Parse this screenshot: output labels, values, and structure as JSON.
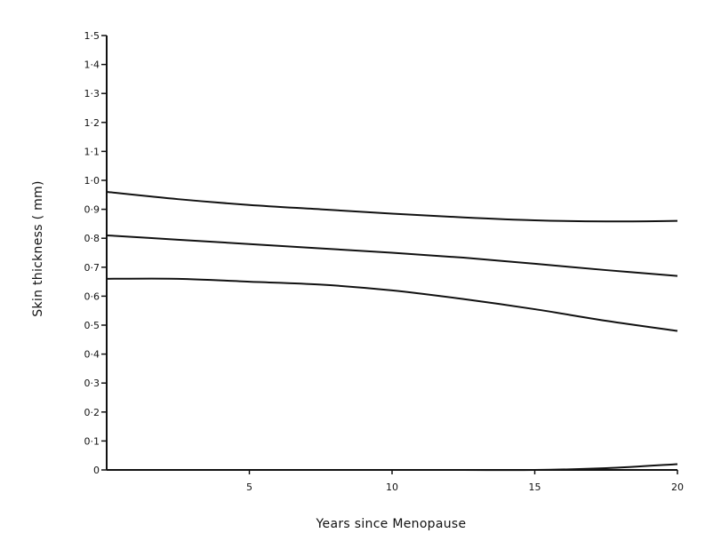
{
  "chart_data": {
    "type": "line",
    "title": "",
    "xlabel": "Years since Menopause",
    "ylabel": "Skin thickness ( mm)",
    "xlim": [
      0,
      20
    ],
    "ylim": [
      0,
      1.5
    ],
    "grid": false,
    "x_ticks": [
      {
        "value": 5,
        "label": "5"
      },
      {
        "value": 10,
        "label": "10"
      },
      {
        "value": 15,
        "label": "15"
      },
      {
        "value": 20,
        "label": "20"
      }
    ],
    "y_ticks": [
      {
        "value": 0,
        "label": "0"
      },
      {
        "value": 0.1,
        "label": "0·1"
      },
      {
        "value": 0.2,
        "label": "0·2"
      },
      {
        "value": 0.3,
        "label": "0·3"
      },
      {
        "value": 0.4,
        "label": "0·4"
      },
      {
        "value": 0.5,
        "label": "0·5"
      },
      {
        "value": 0.6,
        "label": "0·6"
      },
      {
        "value": 0.7,
        "label": "0·7"
      },
      {
        "value": 0.8,
        "label": "0·8"
      },
      {
        "value": 0.9,
        "label": "0·9"
      },
      {
        "value": 1.0,
        "label": "1·0"
      },
      {
        "value": 1.1,
        "label": "1·1"
      },
      {
        "value": 1.2,
        "label": "1·2"
      },
      {
        "value": 1.3,
        "label": "1·3"
      },
      {
        "value": 1.4,
        "label": "1·4"
      },
      {
        "value": 1.5,
        "label": "1·5"
      }
    ],
    "x": [
      0,
      2.5,
      5,
      7.5,
      10,
      12.5,
      15,
      17.5,
      20
    ],
    "series": [
      {
        "values": [
          0.96,
          0.935,
          0.915,
          0.9,
          0.885,
          0.872,
          0.862,
          0.858,
          0.86
        ]
      },
      {
        "values": [
          0.81,
          0.795,
          0.78,
          0.765,
          0.75,
          0.733,
          0.712,
          0.69,
          0.67
        ]
      },
      {
        "values": [
          0.66,
          0.66,
          0.65,
          0.64,
          0.62,
          0.59,
          0.555,
          0.515,
          0.48
        ]
      },
      {
        "values": [
          0.0,
          0.0,
          0.0,
          0.0,
          0.0,
          0.0,
          0.0,
          0.006,
          0.02
        ]
      }
    ]
  }
}
